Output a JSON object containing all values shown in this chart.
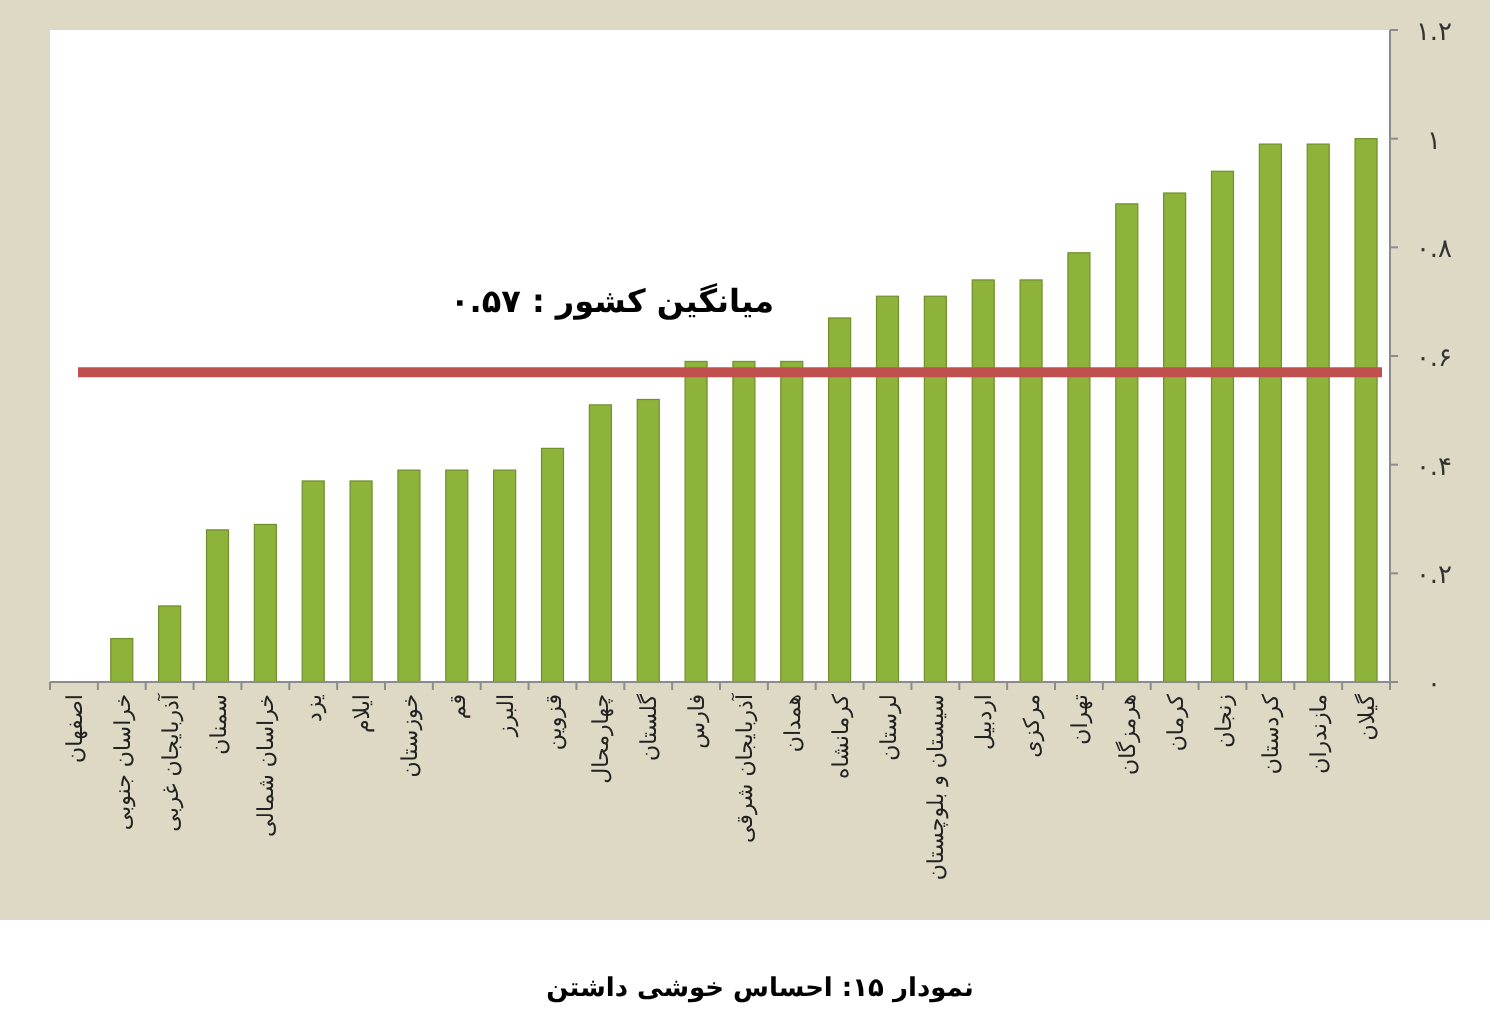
{
  "chart_data": {
    "type": "bar",
    "title": "نمودار ۱۵: احساس خوشی داشتن",
    "categories": [
      "اصفهان",
      "خراسان جنوبی",
      "آذربایجان غربی",
      "سمنان",
      "خراسان شمالی",
      "یزد",
      "ایلام",
      "خوزستان",
      "قم",
      "البرز",
      "قزوین",
      "چهارمحال",
      "گلستان",
      "فارس",
      "آذربایجان شرقی",
      "همدان",
      "کرمانشاه",
      "لرستان",
      "سیستان و بلوچستان",
      "اردبیل",
      "مرکزی",
      "تهران",
      "هرمزگان",
      "کرمان",
      "زنجان",
      "کردستان",
      "مازندران",
      "گیلان"
    ],
    "values": [
      0,
      0.08,
      0.14,
      0.28,
      0.29,
      0.37,
      0.37,
      0.39,
      0.39,
      0.39,
      0.43,
      0.51,
      0.52,
      0.59,
      0.59,
      0.59,
      0.67,
      0.71,
      0.71,
      0.74,
      0.74,
      0.79,
      0.88,
      0.9,
      0.94,
      0.99,
      0.99,
      1.0
    ],
    "color": "#8db33a",
    "ylim": [
      0,
      1.2
    ],
    "yticks": [
      {
        "value": 0,
        "label": "۰"
      },
      {
        "value": 0.2,
        "label": "۰.۲"
      },
      {
        "value": 0.4,
        "label": "۰.۴"
      },
      {
        "value": 0.6,
        "label": "۰.۶"
      },
      {
        "value": 0.8,
        "label": "۰.۸"
      },
      {
        "value": 1,
        "label": "۱"
      },
      {
        "value": 1.2,
        "label": "۱.۲"
      }
    ],
    "ref_lines": [
      {
        "axis": "y",
        "value": 0.57,
        "label": "میانگین کشور : ۰.۵۷",
        "color": "#c0504d"
      }
    ]
  }
}
